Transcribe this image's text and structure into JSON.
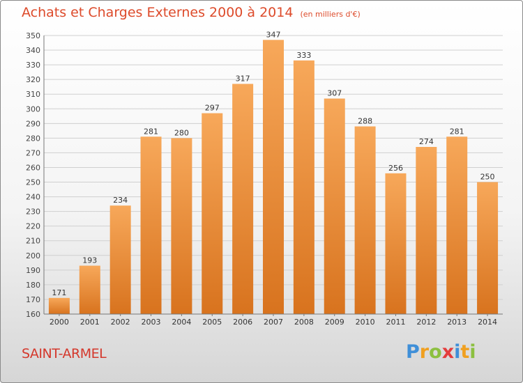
{
  "chart_data": {
    "type": "bar",
    "title": "Achats et Charges Externes 2000 à 2014",
    "subtitle": "(en milliers d'€)",
    "categories": [
      "2000",
      "2001",
      "2002",
      "2003",
      "2004",
      "2005",
      "2006",
      "2007",
      "2008",
      "2009",
      "2010",
      "2011",
      "2012",
      "2013",
      "2014"
    ],
    "values": [
      171,
      193,
      234,
      281,
      280,
      297,
      317,
      347,
      333,
      307,
      288,
      256,
      274,
      281,
      250
    ],
    "ylim": [
      160,
      350
    ],
    "ytick_step": 10,
    "grid": true,
    "bar_color_top": "#f7a85a",
    "bar_color_bottom": "#d8731e"
  },
  "location": "SAINT-ARMEL",
  "logo": {
    "text": "Proxiti",
    "letters": [
      {
        "ch": "P",
        "color": "#3f8fd8"
      },
      {
        "ch": "r",
        "color": "#f0a020"
      },
      {
        "ch": "o",
        "color": "#8cc040"
      },
      {
        "ch": "x",
        "color": "#e43c3c"
      },
      {
        "ch": "i",
        "color": "#3f8fd8"
      },
      {
        "ch": "t",
        "color": "#f0a020"
      },
      {
        "ch": "i",
        "color": "#8cc040"
      }
    ]
  }
}
